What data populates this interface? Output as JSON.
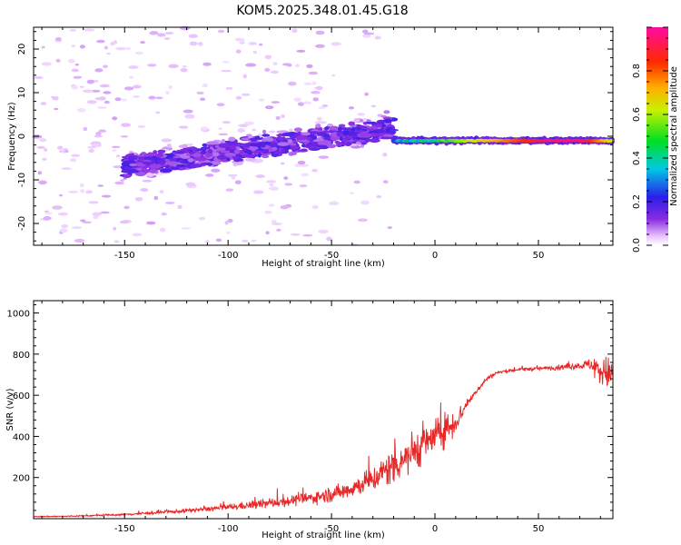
{
  "title": "KOM5.2025.348.01.45.G18",
  "colors": {
    "line": "#e82828",
    "axis": "#000000",
    "background": "#ffffff"
  },
  "chart_data": [
    {
      "type": "heatmap",
      "xlabel": "Height of straight line (km)",
      "ylabel": "Frequency (Hz)",
      "xlim": [
        -194,
        86
      ],
      "ylim": [
        -25,
        25
      ],
      "xticks": [
        -150,
        -100,
        -50,
        0,
        50
      ],
      "yticks": [
        -20,
        -10,
        0,
        10,
        20
      ],
      "colorbar": {
        "label": "Normalized spectral amplitude",
        "range": [
          0,
          1
        ],
        "ticks": [
          0.0,
          0.2,
          0.4,
          0.6,
          0.8
        ],
        "colormap": "rainbow (white-violet-blue-cyan-green-yellow-red-magenta)"
      },
      "features": [
        {
          "region": "noise",
          "x_range": [
            -194,
            -20
          ],
          "freq_range": [
            -25,
            25
          ],
          "amplitude": 0.02
        },
        {
          "region": "diffuse signal",
          "x_range": [
            -150,
            -20
          ],
          "freq_range": [
            -10,
            8
          ],
          "amplitude": 0.1,
          "trend": "frequency rises from about -7 Hz at -130 km to about 2 Hz at -25 km"
        },
        {
          "region": "stable line",
          "x_range": [
            -20,
            86
          ],
          "freq": -1,
          "amplitude_start": 0.3,
          "amplitude_end": 0.95
        }
      ]
    },
    {
      "type": "line",
      "xlabel": "Height of straight line (km)",
      "ylabel": "SNR (v/v)",
      "xlim": [
        -194,
        86
      ],
      "ylim": [
        0,
        1060
      ],
      "xticks": [
        -150,
        -100,
        -50,
        0,
        50
      ],
      "yticks": [
        200,
        400,
        600,
        800,
        1000
      ],
      "series": [
        {
          "name": "SNR",
          "x": [
            -194,
            -175,
            -150,
            -125,
            -100,
            -80,
            -60,
            -45,
            -30,
            -20,
            -10,
            0,
            10,
            15,
            20,
            25,
            30,
            40,
            50,
            60,
            70,
            75,
            80,
            86
          ],
          "y": [
            10,
            12,
            20,
            35,
            55,
            75,
            100,
            130,
            190,
            260,
            330,
            400,
            470,
            550,
            620,
            680,
            710,
            725,
            730,
            735,
            745,
            750,
            720,
            700
          ],
          "noise_amplitude": [
            4,
            5,
            8,
            15,
            25,
            40,
            50,
            70,
            100,
            160,
            170,
            140,
            120,
            30,
            25,
            20,
            15,
            15,
            15,
            20,
            30,
            50,
            150,
            120
          ]
        }
      ]
    }
  ]
}
